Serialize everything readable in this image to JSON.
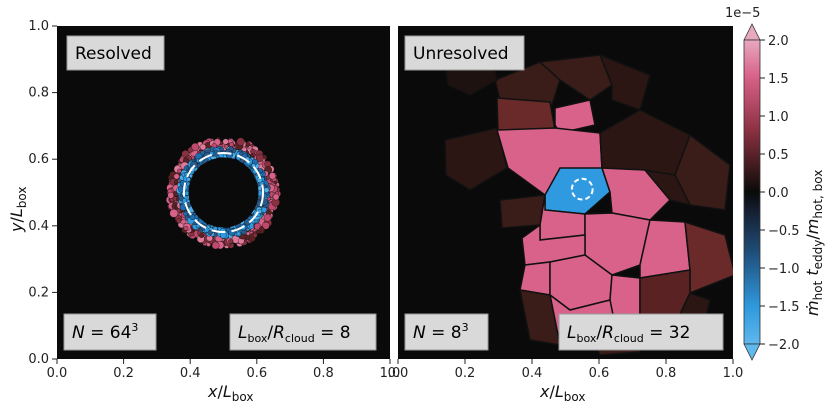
{
  "chart_data": [
    {
      "type": "heatmap",
      "panel": "left",
      "label": "Resolved",
      "annotation_left": "N = 64³",
      "annotation_right": "L_box/R_cloud = 8",
      "xlabel": "x/L_box",
      "ylabel": "y/L_box",
      "xlim": [
        0.0,
        1.0
      ],
      "ylim": [
        0.0,
        1.0
      ],
      "xticks": [
        "0.0",
        "0.2",
        "0.4",
        "0.6",
        "0.8",
        "1.0"
      ],
      "yticks": [
        "0.0",
        "0.2",
        "0.4",
        "0.6",
        "0.8",
        "1.0"
      ],
      "cloud": {
        "center": [
          0.5,
          0.5
        ],
        "radius": 0.125
      }
    },
    {
      "type": "heatmap",
      "panel": "right",
      "label": "Unresolved",
      "annotation_left": "N = 8³",
      "annotation_right": "L_box/R_cloud = 32",
      "xlabel": "x/L_box",
      "xlim": [
        0.0,
        1.0
      ],
      "ylim": [
        0.0,
        1.0
      ],
      "xticks": [
        "0.0",
        "0.2",
        "0.4",
        "0.6",
        "0.8",
        "1.0"
      ],
      "cloud": {
        "center": [
          0.55,
          0.51
        ],
        "radius": 0.031
      }
    }
  ],
  "colorbar": {
    "label": "ṁ_hot t_eddy / m_hot,box",
    "scale_note": "1e−5",
    "range": [
      -2.0,
      2.0
    ],
    "ticks": [
      "2.0",
      "1.5",
      "1.0",
      "0.5",
      "0.0",
      "−0.5",
      "−1.0",
      "−1.5",
      "−2.0"
    ],
    "colors": {
      "top": "#e0a0b8",
      "high": "#d9628a",
      "mid": "#0a0a0a",
      "low": "#2f9ae0",
      "bottom": "#8fd0f5"
    }
  }
}
